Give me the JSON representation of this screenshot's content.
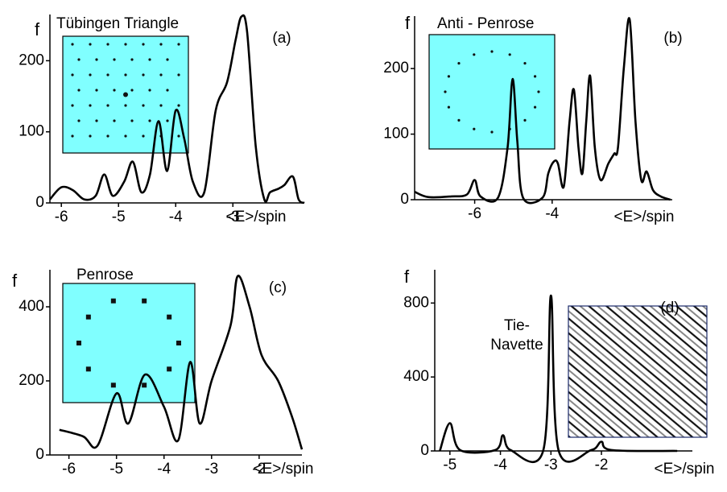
{
  "chart_data": [
    {
      "type": "line",
      "title": "Tübingen Triangle",
      "annotation": "(a)",
      "ylabel": "f",
      "xlabel": "<E>/spin",
      "color": "#000000",
      "x": [
        -6.2,
        -6.0,
        -5.8,
        -5.6,
        -5.4,
        -5.25,
        -5.1,
        -4.9,
        -4.75,
        -4.6,
        -4.45,
        -4.3,
        -4.15,
        -4.0,
        -3.85,
        -3.7,
        -3.5,
        -3.3,
        -3.1,
        -2.95,
        -2.85,
        -2.75,
        -2.6,
        -2.45,
        -2.35,
        -2.2,
        -2.1,
        -1.95,
        -1.85,
        -1.75
      ],
      "values": [
        5,
        22,
        18,
        5,
        10,
        40,
        10,
        30,
        58,
        15,
        40,
        115,
        45,
        130,
        90,
        30,
        15,
        130,
        170,
        230,
        262,
        240,
        80,
        5,
        15,
        20,
        25,
        37,
        5,
        0
      ],
      "xlim": [
        -6.2,
        -1.75
      ],
      "ylim": [
        0,
        265
      ],
      "xticks": [
        -6,
        -5,
        -4,
        -3
      ],
      "yticks": [
        0,
        100,
        200
      ]
    },
    {
      "type": "line",
      "title": "Anti - Penrose",
      "annotation": "(b)",
      "ylabel": "f",
      "xlabel": "<E>/spin",
      "color": "#000000",
      "x": [
        -7.55,
        -7.2,
        -6.6,
        -6.2,
        -6.0,
        -5.85,
        -5.4,
        -5.15,
        -5.02,
        -4.9,
        -4.75,
        -4.25,
        -4.1,
        -3.96,
        -3.85,
        -3.7,
        -3.55,
        -3.44,
        -3.32,
        -3.22,
        -3.12,
        -3.02,
        -2.9,
        -2.75,
        -2.55,
        -2.4,
        -2.3,
        -2.15,
        -2.0,
        -1.85,
        -1.7,
        -1.56,
        -1.4,
        -1.2,
        -0.95
      ],
      "values": [
        12,
        4,
        5,
        8,
        30,
        5,
        3,
        80,
        184,
        90,
        3,
        3,
        40,
        58,
        55,
        20,
        120,
        168,
        80,
        40,
        120,
        189,
        80,
        30,
        55,
        70,
        80,
        200,
        275,
        120,
        30,
        43,
        15,
        5,
        0
      ],
      "xlim": [
        -7.55,
        -0.9
      ],
      "ylim": [
        0,
        280
      ],
      "xticks": [
        -6,
        -4
      ],
      "yticks": [
        0,
        100,
        200
      ]
    },
    {
      "type": "line",
      "title": "Penrose",
      "annotation": "(c)",
      "ylabel": "f",
      "xlabel": "<E>/spin",
      "color": "#000000",
      "x": [
        -6.2,
        -5.7,
        -5.4,
        -5.0,
        -4.75,
        -4.4,
        -4.0,
        -3.7,
        -3.45,
        -3.25,
        -3.0,
        -2.6,
        -2.45,
        -2.2,
        -1.95,
        -1.6,
        -1.3,
        -1.1
      ],
      "values": [
        68,
        50,
        25,
        166,
        85,
        217,
        130,
        40,
        251,
        85,
        200,
        350,
        483,
        400,
        270,
        200,
        100,
        15
      ],
      "xlim": [
        -6.4,
        -1.1
      ],
      "ylim": [
        0,
        500
      ],
      "xticks": [
        -6,
        -5,
        -4,
        -3,
        -2
      ],
      "yticks": [
        0,
        200,
        400
      ]
    },
    {
      "type": "line",
      "title": [
        "Tie-",
        "Navette"
      ],
      "annotation": "(d)",
      "ylabel": "f",
      "xlabel": "<E>/spin",
      "color": "#000000",
      "x": [
        -5.2,
        -5.0,
        -4.8,
        -4.1,
        -3.95,
        -3.8,
        -3.15,
        -3.0,
        -2.85,
        -2.2,
        -2.0,
        -1.8,
        -0.5
      ],
      "values": [
        0,
        150,
        5,
        5,
        85,
        5,
        5,
        840,
        5,
        5,
        50,
        5,
        0
      ],
      "xlim": [
        -5.3,
        -0.2
      ],
      "ylim": [
        0,
        980
      ],
      "xticks": [
        -5,
        -4,
        -3,
        -2
      ],
      "yticks": [
        0,
        400,
        800
      ]
    }
  ]
}
